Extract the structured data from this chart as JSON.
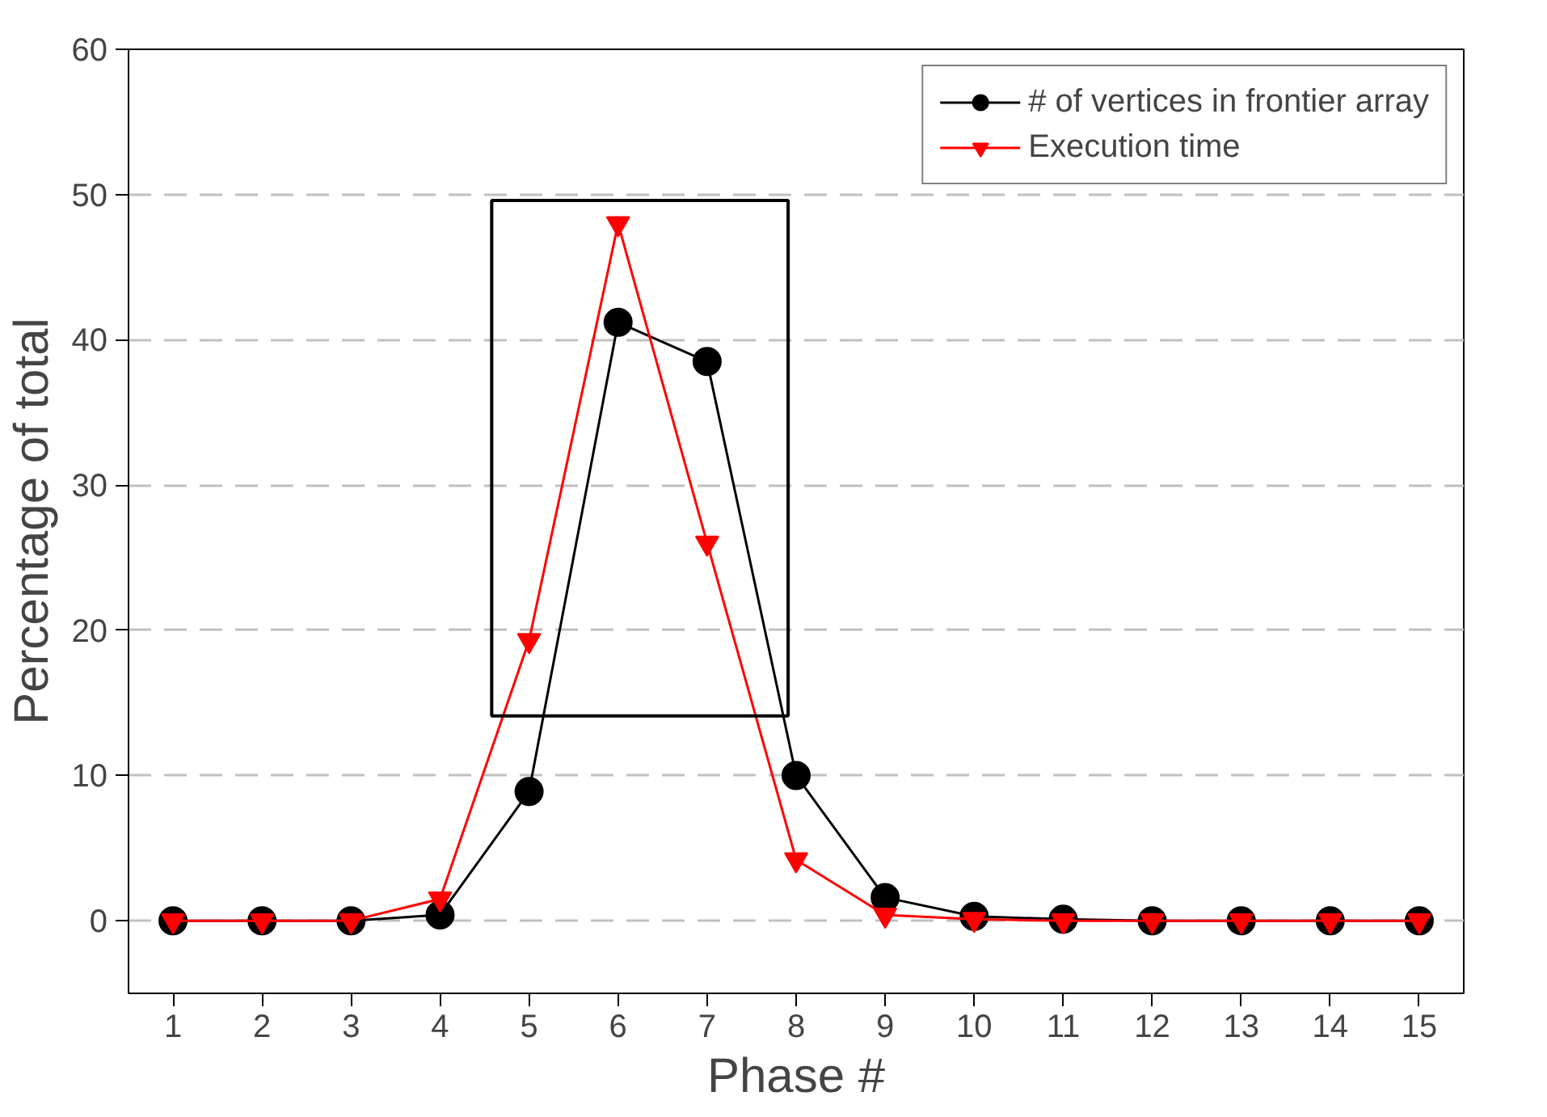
{
  "chart_data": {
    "type": "line",
    "xlabel": "Phase #",
    "ylabel": "Percentage of total",
    "x": [
      1,
      2,
      3,
      4,
      5,
      6,
      7,
      8,
      9,
      10,
      11,
      12,
      13,
      14,
      15
    ],
    "series": [
      {
        "name": "# of vertices in frontier array",
        "color": "#000000",
        "marker": "circle",
        "values": [
          0,
          0,
          0,
          0.4,
          8.9,
          41.2,
          38.5,
          10,
          1.6,
          0.3,
          0.1,
          0,
          0,
          0,
          0
        ]
      },
      {
        "name": "Execution time",
        "color": "#ff0000",
        "marker": "triangle",
        "values": [
          0,
          0,
          0,
          1.5,
          19.3,
          48,
          26,
          4.2,
          0.4,
          0.1,
          0,
          0,
          0,
          0,
          0
        ]
      }
    ],
    "xlim": [
      0.5,
      15.5
    ],
    "xticks": [
      1,
      2,
      3,
      4,
      5,
      6,
      7,
      8,
      9,
      10,
      11,
      12,
      13,
      14,
      15
    ],
    "ylim": [
      -5,
      60
    ],
    "yticks": [
      0,
      10,
      20,
      30,
      40,
      50,
      60
    ],
    "grid": "y",
    "legend": "top right",
    "line_style": "solid"
  }
}
